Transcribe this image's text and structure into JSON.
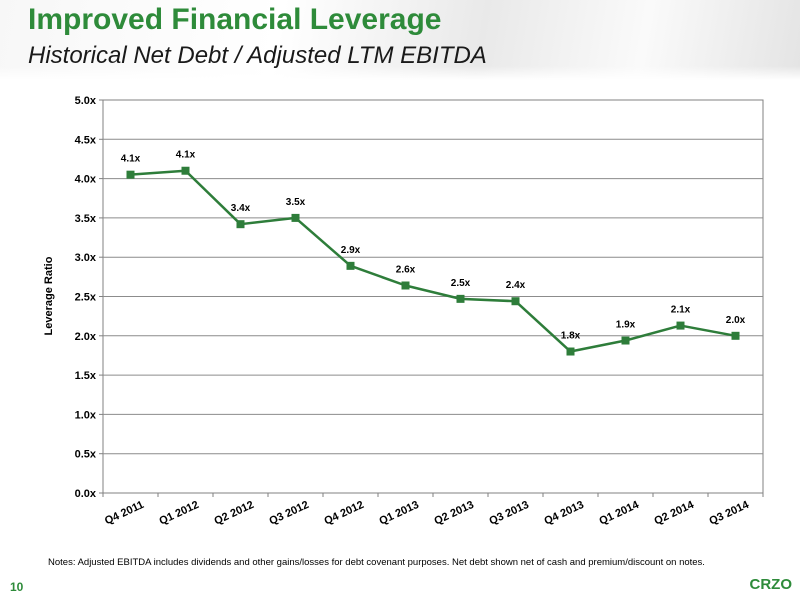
{
  "header": {
    "title": "Improved Financial Leverage",
    "subtitle": "Historical Net Debt / Adjusted LTM EBITDA"
  },
  "chart_data": {
    "type": "line",
    "ylabel": "Leverage Ratio",
    "xlabel": "",
    "ylim": [
      0,
      5
    ],
    "y_ticks": [
      "0.0x",
      "0.5x",
      "1.0x",
      "1.5x",
      "2.0x",
      "2.5x",
      "3.0x",
      "3.5x",
      "4.0x",
      "4.5x",
      "5.0x"
    ],
    "grid": true,
    "categories": [
      "Q4 2011",
      "Q1 2012",
      "Q2 2012",
      "Q3 2012",
      "Q4 2012",
      "Q1 2013",
      "Q2 2013",
      "Q3 2013",
      "Q4 2013",
      "Q1 2014",
      "Q2 2014",
      "Q3 2014"
    ],
    "series": [
      {
        "values": [
          4.05,
          4.1,
          3.42,
          3.5,
          2.89,
          2.64,
          2.47,
          2.44,
          1.8,
          1.94,
          2.13,
          2.0
        ],
        "labels": [
          "4.1x",
          "4.1x",
          "3.4x",
          "3.5x",
          "2.9x",
          "2.6x",
          "2.5x",
          "2.4x",
          "1.8x",
          "1.9x",
          "2.1x",
          "2.0x"
        ],
        "color": "#2e7d3a"
      }
    ]
  },
  "footer": {
    "notes": "Notes: Adjusted EBITDA includes dividends and other gains/losses for debt covenant purposes.  Net debt shown net of cash and premium/discount on notes.",
    "page_number": "10",
    "ticker": "CRZO"
  }
}
